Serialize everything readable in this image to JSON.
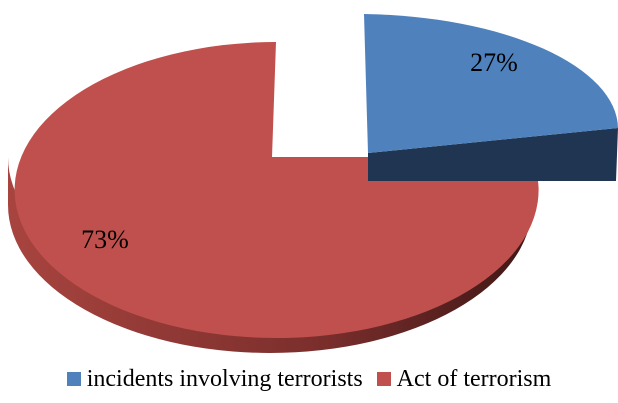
{
  "chart_data": {
    "type": "pie",
    "title": "",
    "labels": [
      "incidents involving terrorists",
      "Act of terrorism"
    ],
    "values": [
      27,
      73
    ],
    "data_labels": [
      "27%",
      "73%"
    ],
    "colors": [
      "#4F81BD",
      "#C0504D"
    ],
    "side_colors": [
      "#1F3552",
      "#7A2E2C"
    ],
    "exploded": [
      "incidents involving terrorists"
    ],
    "legend_position": "bottom",
    "style": "3d"
  }
}
